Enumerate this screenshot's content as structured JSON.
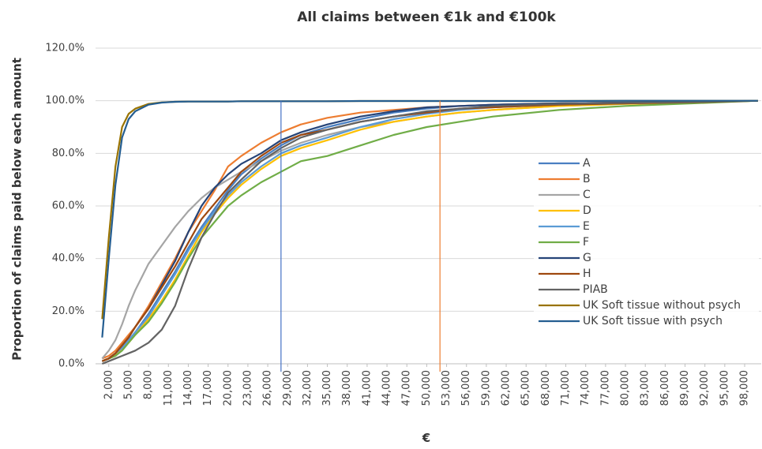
{
  "chart_data": {
    "type": "line",
    "title": "All claims between €1k and €100k",
    "x_label": "€",
    "y_label": "Proportion of claims paid below each amount",
    "xlim": [
      0,
      100500
    ],
    "ylim": [
      0,
      120
    ],
    "grid": true,
    "legend": "right",
    "yticks": [
      {
        "value": 0,
        "label": "0.0%"
      },
      {
        "value": 20,
        "label": "20.0%"
      },
      {
        "value": 40,
        "label": "40.0%"
      },
      {
        "value": 60,
        "label": "60.0%"
      },
      {
        "value": 80,
        "label": "80.0%"
      },
      {
        "value": 100,
        "label": "100.0%"
      },
      {
        "value": 120,
        "label": "120.0%"
      }
    ],
    "xticks": [
      {
        "value": 2000,
        "label": "2,000"
      },
      {
        "value": 5000,
        "label": "5,000"
      },
      {
        "value": 8000,
        "label": "8,000"
      },
      {
        "value": 11000,
        "label": "11,000"
      },
      {
        "value": 14000,
        "label": "14,000"
      },
      {
        "value": 17000,
        "label": "17,000"
      },
      {
        "value": 20000,
        "label": "20,000"
      },
      {
        "value": 23000,
        "label": "23,000"
      },
      {
        "value": 26000,
        "label": "26,000"
      },
      {
        "value": 29000,
        "label": "29,000"
      },
      {
        "value": 32000,
        "label": "32,000"
      },
      {
        "value": 35000,
        "label": "35,000"
      },
      {
        "value": 38000,
        "label": "38,000"
      },
      {
        "value": 41000,
        "label": "41,000"
      },
      {
        "value": 44000,
        "label": "44,000"
      },
      {
        "value": 47000,
        "label": "47,000"
      },
      {
        "value": 50000,
        "label": "50,000"
      },
      {
        "value": 53000,
        "label": "53,000"
      },
      {
        "value": 56000,
        "label": "56,000"
      },
      {
        "value": 59000,
        "label": "59,000"
      },
      {
        "value": 62000,
        "label": "62,000"
      },
      {
        "value": 65000,
        "label": "65,000"
      },
      {
        "value": 68000,
        "label": "68,000"
      },
      {
        "value": 71000,
        "label": "71,000"
      },
      {
        "value": 74000,
        "label": "74,000"
      },
      {
        "value": 77000,
        "label": "77,000"
      },
      {
        "value": 80000,
        "label": "80,000"
      },
      {
        "value": 83000,
        "label": "83,000"
      },
      {
        "value": 86000,
        "label": "86,000"
      },
      {
        "value": 89000,
        "label": "89,000"
      },
      {
        "value": 92000,
        "label": "92,000"
      },
      {
        "value": 95000,
        "label": "95,000"
      },
      {
        "value": 98000,
        "label": "98,000"
      }
    ],
    "x": [
      1000,
      2000,
      3000,
      4000,
      5000,
      6000,
      8000,
      10000,
      12000,
      14000,
      16000,
      18000,
      20000,
      22000,
      25000,
      28000,
      31000,
      35000,
      40000,
      45000,
      50000,
      55000,
      60000,
      70000,
      80000,
      90000,
      100000
    ],
    "series": [
      {
        "name": "A",
        "color": "#4a7fc1",
        "values": [
          1,
          2,
          4,
          6,
          9,
          12,
          19,
          27,
          35,
          44,
          52,
          59,
          66,
          72,
          78,
          83,
          87,
          90,
          93,
          95.5,
          97,
          98,
          98.5,
          99,
          99.3,
          99.6,
          100
        ]
      },
      {
        "name": "B",
        "color": "#ed7d31",
        "values": [
          2,
          3,
          5,
          8,
          11,
          14,
          22,
          31,
          40,
          50,
          58,
          66,
          75,
          79,
          84,
          88,
          91,
          93.5,
          95.5,
          96.5,
          97.5,
          98,
          98.5,
          99,
          99.3,
          99.6,
          100
        ]
      },
      {
        "name": "C",
        "color": "#a5a5a5",
        "values": [
          2,
          5,
          9,
          15,
          22,
          28,
          38,
          45,
          52,
          58,
          63,
          67,
          70,
          73,
          77,
          81,
          84,
          87,
          90,
          92,
          94,
          95.5,
          96.5,
          98,
          98.8,
          99.3,
          100
        ]
      },
      {
        "name": "D",
        "color": "#ffc000",
        "values": [
          1,
          2,
          3,
          6,
          8,
          11,
          17,
          24,
          32,
          41,
          50,
          57,
          63,
          68,
          74,
          79,
          82,
          85,
          89,
          92,
          94,
          95.5,
          96.5,
          98,
          98.8,
          99.3,
          100
        ]
      },
      {
        "name": "E",
        "color": "#5b9bd5",
        "values": [
          1,
          2,
          4,
          6,
          9,
          12,
          18,
          26,
          34,
          43,
          51,
          58,
          64,
          69,
          75,
          80,
          83,
          86,
          90,
          93,
          95,
          96.5,
          97.5,
          98.5,
          99,
          99.4,
          100
        ]
      },
      {
        "name": "F",
        "color": "#70ad47",
        "values": [
          1,
          2,
          3,
          5,
          8,
          11,
          16,
          23,
          31,
          40,
          48,
          54,
          60,
          64,
          69,
          73,
          77,
          79,
          83,
          87,
          90,
          92,
          94,
          96.5,
          98,
          99,
          100
        ]
      },
      {
        "name": "G",
        "color": "#264478",
        "values": [
          1,
          2,
          4,
          7,
          10,
          14,
          21,
          30,
          39,
          50,
          60,
          67,
          72,
          76,
          80,
          85,
          88,
          91,
          94,
          96,
          97.5,
          98,
          98.5,
          99,
          99.3,
          99.6,
          100
        ]
      },
      {
        "name": "H",
        "color": "#9e480e",
        "values": [
          1,
          2,
          4,
          7,
          10,
          14,
          21,
          29,
          37,
          46,
          55,
          61,
          67,
          73,
          79,
          84,
          87,
          89,
          92,
          94,
          95.5,
          97,
          97.5,
          98.5,
          99,
          99.4,
          100
        ]
      },
      {
        "name": "PIAB",
        "color": "#636363",
        "values": [
          0,
          1,
          2,
          3,
          4,
          5,
          8,
          13,
          22,
          36,
          48,
          57,
          65,
          70,
          77,
          82,
          86,
          89,
          92,
          94,
          96,
          97,
          98,
          98.8,
          99.2,
          99.5,
          100
        ]
      },
      {
        "name": "UK Soft tissue without psych",
        "color": "#997300",
        "values": [
          17,
          48,
          75,
          90,
          95,
          97,
          98.8,
          99.4,
          99.6,
          99.7,
          99.7,
          99.7,
          99.7,
          99.8,
          99.8,
          99.8,
          99.8,
          99.8,
          99.9,
          99.9,
          99.9,
          99.9,
          99.9,
          99.9,
          100,
          100,
          100
        ]
      },
      {
        "name": "UK Soft tissue with psych",
        "color": "#255e91",
        "values": [
          10,
          40,
          68,
          86,
          93,
          96,
          98.5,
          99.3,
          99.6,
          99.7,
          99.7,
          99.7,
          99.7,
          99.8,
          99.8,
          99.8,
          99.8,
          99.8,
          99.9,
          99.9,
          99.9,
          99.9,
          99.9,
          99.9,
          100,
          100,
          100
        ]
      }
    ],
    "vlines": [
      {
        "x": 28000,
        "y": 100,
        "color": "#4472c4"
      },
      {
        "x": 52000,
        "y": 100,
        "color": "#ed7d31"
      }
    ]
  }
}
